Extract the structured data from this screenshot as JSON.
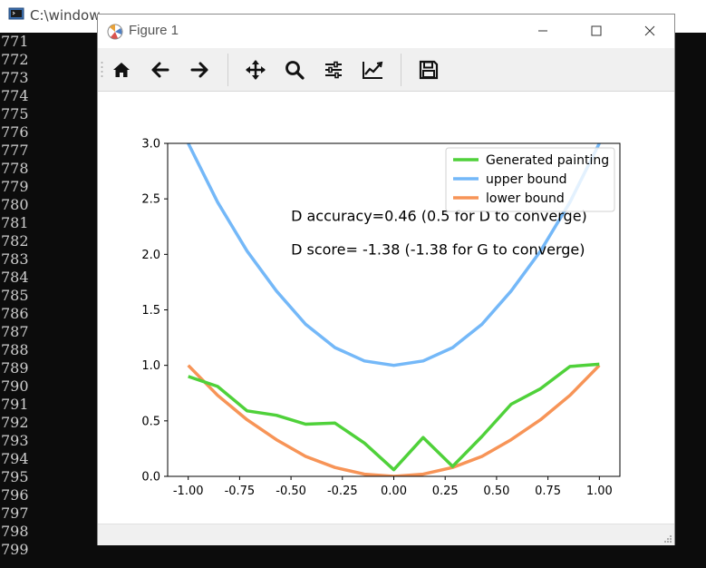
{
  "console": {
    "title": "C:\\window",
    "line_numbers": [
      "771",
      "772",
      "773",
      "774",
      "775",
      "776",
      "777",
      "778",
      "779",
      "780",
      "781",
      "782",
      "783",
      "784",
      "785",
      "786",
      "787",
      "788",
      "789",
      "790",
      "791",
      "792",
      "793",
      "794",
      "795",
      "796",
      "797",
      "798",
      "799"
    ]
  },
  "figure_window": {
    "title": "Figure 1",
    "toolbar": [
      "home-icon",
      "back-icon",
      "forward-icon",
      "pan-icon",
      "zoom-icon",
      "configure-subplots-icon",
      "edit-axes-icon",
      "save-icon"
    ]
  },
  "colors": {
    "generated": "#4fd13a",
    "upper": "#74b8f8",
    "lower": "#f79457"
  },
  "chart_data": {
    "type": "line",
    "x": [
      -1.0,
      -0.857,
      -0.714,
      -0.571,
      -0.429,
      -0.286,
      -0.143,
      0.0,
      0.143,
      0.286,
      0.429,
      0.571,
      0.714,
      0.857,
      1.0
    ],
    "series": [
      {
        "name": "Generated painting",
        "values": [
          0.9,
          0.81,
          0.59,
          0.55,
          0.47,
          0.48,
          0.3,
          0.06,
          0.35,
          0.09,
          0.36,
          0.65,
          0.79,
          0.99,
          1.01
        ]
      },
      {
        "name": "upper bound",
        "values": [
          3.0,
          2.47,
          2.03,
          1.67,
          1.37,
          1.16,
          1.04,
          1.0,
          1.04,
          1.16,
          1.37,
          1.67,
          2.03,
          2.47,
          3.0
        ]
      },
      {
        "name": "lower bound",
        "values": [
          1.0,
          0.73,
          0.51,
          0.33,
          0.18,
          0.08,
          0.02,
          0.0,
          0.02,
          0.08,
          0.18,
          0.33,
          0.51,
          0.73,
          1.0
        ]
      }
    ],
    "xlim": [
      -1.1,
      1.1
    ],
    "ylim": [
      0,
      3
    ],
    "xticks": [
      "-1.00",
      "-0.75",
      "-0.50",
      "-0.25",
      "0.00",
      "0.25",
      "0.50",
      "0.75",
      "1.00"
    ],
    "xtick_values": [
      -1.0,
      -0.75,
      -0.5,
      -0.25,
      0.0,
      0.25,
      0.5,
      0.75,
      1.0
    ],
    "yticks": [
      "0.0",
      "0.5",
      "1.0",
      "1.5",
      "2.0",
      "2.5",
      "3.0"
    ],
    "ytick_values": [
      0,
      0.5,
      1.0,
      1.5,
      2.0,
      2.5,
      3.0
    ],
    "legend_position": "top-right",
    "annotations": [
      {
        "text": "D accuracy=0.46 (0.5 for D to converge)",
        "x": -0.5,
        "y": 2.3
      },
      {
        "text": "D score= -1.38 (-1.38 for G to converge)",
        "x": -0.5,
        "y": 2.0
      }
    ],
    "grid": false
  }
}
